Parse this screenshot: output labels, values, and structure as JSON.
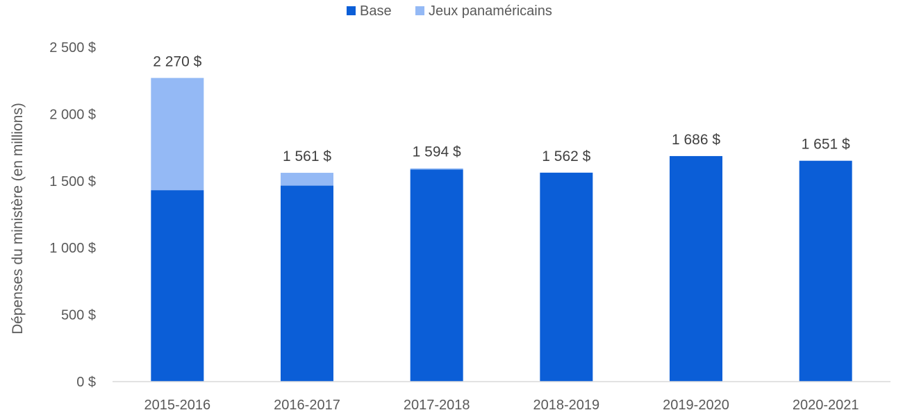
{
  "chart_data": {
    "type": "bar",
    "stacked": true,
    "categories": [
      "2015-2016",
      "2016-2017",
      "2017-2018",
      "2018-2019",
      "2019-2020",
      "2020-2021"
    ],
    "series": [
      {
        "name": "Base",
        "color": "#0b5ed7",
        "values": [
          1431,
          1465,
          1586,
          1562,
          1686,
          1651
        ]
      },
      {
        "name": "Jeux panaméricains",
        "color": "#94b9f5",
        "values": [
          839,
          96,
          8,
          0,
          0,
          0
        ]
      }
    ],
    "totals_labels": [
      "2 270 $",
      "1 561 $",
      "1 594 $",
      "1 562 $",
      "1 686 $",
      "1 651 $"
    ],
    "ylabel": "Dépenses du ministère (en millions)",
    "ylim": [
      0,
      2500
    ],
    "yticks": [
      0,
      500,
      1000,
      1500,
      2000,
      2500
    ],
    "ytick_labels": [
      "0 $",
      "500 $",
      "1 000 $",
      "1 500 $",
      "2 000 $",
      "2 500 $"
    ],
    "legend_position": "top-center",
    "grid": false
  }
}
